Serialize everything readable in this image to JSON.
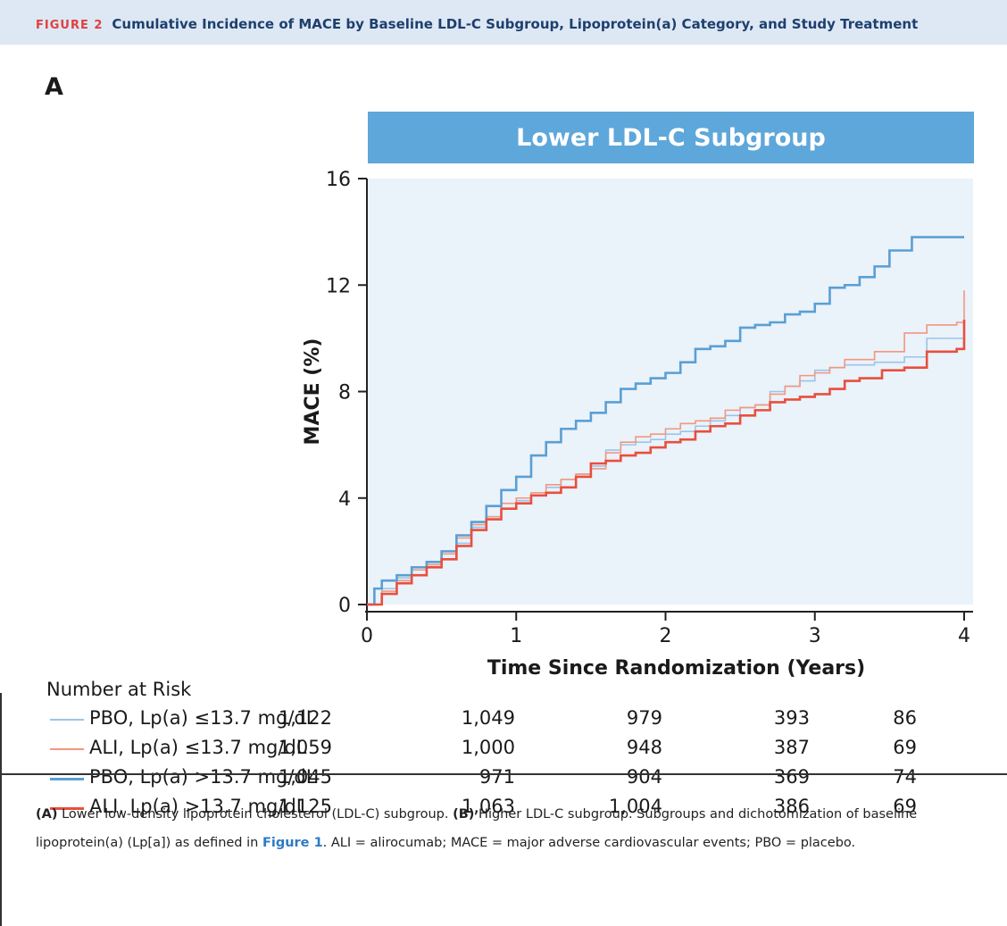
{
  "figure": {
    "number": "FIGURE 2",
    "title": "Cumulative Incidence of MACE by Baseline LDL-C Subgroup, Lipoprotein(a) Category, and Study Treatment"
  },
  "panel_letter": "A",
  "chart_data": {
    "type": "line",
    "title": "Lower LDL-C Subgroup",
    "xlabel": "Time Since Randomization (Years)",
    "ylabel": "MACE (%)",
    "xlim": [
      0,
      4
    ],
    "ylim": [
      0,
      16
    ],
    "xticks": [
      0,
      1,
      2,
      3,
      4
    ],
    "yticks": [
      0,
      4,
      8,
      12,
      16
    ],
    "background": "#eaf2fa",
    "series": [
      {
        "name": "PBO, Lp(a) ≤13.7 mg/dL",
        "color": "#9cc4e8",
        "step": true,
        "points": [
          [
            0,
            0
          ],
          [
            0.1,
            0.6
          ],
          [
            0.2,
            1.0
          ],
          [
            0.3,
            1.3
          ],
          [
            0.4,
            1.5
          ],
          [
            0.5,
            1.7
          ],
          [
            0.6,
            2.3
          ],
          [
            0.7,
            2.9
          ],
          [
            0.8,
            3.3
          ],
          [
            0.9,
            3.6
          ],
          [
            1.0,
            3.9
          ],
          [
            1.1,
            4.1
          ],
          [
            1.2,
            4.4
          ],
          [
            1.3,
            4.7
          ],
          [
            1.4,
            4.9
          ],
          [
            1.5,
            5.2
          ],
          [
            1.6,
            5.8
          ],
          [
            1.7,
            6.0
          ],
          [
            1.8,
            6.1
          ],
          [
            1.9,
            6.2
          ],
          [
            2.0,
            6.4
          ],
          [
            2.1,
            6.5
          ],
          [
            2.2,
            6.7
          ],
          [
            2.3,
            6.9
          ],
          [
            2.4,
            7.1
          ],
          [
            2.5,
            7.4
          ],
          [
            2.6,
            7.5
          ],
          [
            2.7,
            8.0
          ],
          [
            2.8,
            8.2
          ],
          [
            2.9,
            8.4
          ],
          [
            3.0,
            8.8
          ],
          [
            3.1,
            8.9
          ],
          [
            3.2,
            9.0
          ],
          [
            3.4,
            9.1
          ],
          [
            3.6,
            9.3
          ],
          [
            3.75,
            10.0
          ],
          [
            3.9,
            10.0
          ],
          [
            4.0,
            10.0
          ]
        ]
      },
      {
        "name": "ALI, Lp(a) ≤13.7 mg/dL",
        "color": "#f2977f",
        "step": true,
        "points": [
          [
            0,
            0
          ],
          [
            0.1,
            0.5
          ],
          [
            0.2,
            0.9
          ],
          [
            0.3,
            1.3
          ],
          [
            0.4,
            1.5
          ],
          [
            0.5,
            1.9
          ],
          [
            0.6,
            2.5
          ],
          [
            0.7,
            3.0
          ],
          [
            0.8,
            3.3
          ],
          [
            0.9,
            3.8
          ],
          [
            1.0,
            4.0
          ],
          [
            1.1,
            4.2
          ],
          [
            1.2,
            4.5
          ],
          [
            1.3,
            4.7
          ],
          [
            1.4,
            4.9
          ],
          [
            1.5,
            5.1
          ],
          [
            1.6,
            5.7
          ],
          [
            1.7,
            6.1
          ],
          [
            1.8,
            6.3
          ],
          [
            1.9,
            6.4
          ],
          [
            2.0,
            6.6
          ],
          [
            2.1,
            6.8
          ],
          [
            2.2,
            6.9
          ],
          [
            2.3,
            7.0
          ],
          [
            2.4,
            7.3
          ],
          [
            2.5,
            7.4
          ],
          [
            2.6,
            7.5
          ],
          [
            2.7,
            7.9
          ],
          [
            2.8,
            8.2
          ],
          [
            2.9,
            8.6
          ],
          [
            3.0,
            8.7
          ],
          [
            3.1,
            8.9
          ],
          [
            3.2,
            9.2
          ],
          [
            3.4,
            9.5
          ],
          [
            3.6,
            10.2
          ],
          [
            3.75,
            10.5
          ],
          [
            3.95,
            10.6
          ],
          [
            4.0,
            11.8
          ]
        ]
      },
      {
        "name": "PBO, Lp(a) >13.7 mg/dL",
        "color": "#5a9fd4",
        "step": true,
        "points": [
          [
            0,
            0
          ],
          [
            0.05,
            0.6
          ],
          [
            0.1,
            0.9
          ],
          [
            0.2,
            1.1
          ],
          [
            0.3,
            1.4
          ],
          [
            0.4,
            1.6
          ],
          [
            0.5,
            2.0
          ],
          [
            0.6,
            2.6
          ],
          [
            0.7,
            3.1
          ],
          [
            0.8,
            3.7
          ],
          [
            0.9,
            4.3
          ],
          [
            1.0,
            4.8
          ],
          [
            1.1,
            5.6
          ],
          [
            1.2,
            6.1
          ],
          [
            1.3,
            6.6
          ],
          [
            1.4,
            6.9
          ],
          [
            1.5,
            7.2
          ],
          [
            1.6,
            7.6
          ],
          [
            1.7,
            8.1
          ],
          [
            1.8,
            8.3
          ],
          [
            1.9,
            8.5
          ],
          [
            2.0,
            8.7
          ],
          [
            2.1,
            9.1
          ],
          [
            2.2,
            9.6
          ],
          [
            2.3,
            9.7
          ],
          [
            2.4,
            9.9
          ],
          [
            2.5,
            10.4
          ],
          [
            2.6,
            10.5
          ],
          [
            2.7,
            10.6
          ],
          [
            2.8,
            10.9
          ],
          [
            2.9,
            11.0
          ],
          [
            3.0,
            11.3
          ],
          [
            3.1,
            11.9
          ],
          [
            3.2,
            12.0
          ],
          [
            3.3,
            12.3
          ],
          [
            3.4,
            12.7
          ],
          [
            3.5,
            13.3
          ],
          [
            3.65,
            13.8
          ],
          [
            4.0,
            13.8
          ]
        ]
      },
      {
        "name": "ALI, Lp(a) >13.7 mg/dL",
        "color": "#e84f3d",
        "step": true,
        "points": [
          [
            0,
            0
          ],
          [
            0.1,
            0.4
          ],
          [
            0.2,
            0.8
          ],
          [
            0.3,
            1.1
          ],
          [
            0.4,
            1.4
          ],
          [
            0.5,
            1.7
          ],
          [
            0.6,
            2.2
          ],
          [
            0.7,
            2.8
          ],
          [
            0.8,
            3.2
          ],
          [
            0.9,
            3.6
          ],
          [
            1.0,
            3.8
          ],
          [
            1.1,
            4.1
          ],
          [
            1.2,
            4.2
          ],
          [
            1.3,
            4.4
          ],
          [
            1.4,
            4.8
          ],
          [
            1.5,
            5.3
          ],
          [
            1.6,
            5.4
          ],
          [
            1.7,
            5.6
          ],
          [
            1.8,
            5.7
          ],
          [
            1.9,
            5.9
          ],
          [
            2.0,
            6.1
          ],
          [
            2.1,
            6.2
          ],
          [
            2.2,
            6.5
          ],
          [
            2.3,
            6.7
          ],
          [
            2.4,
            6.8
          ],
          [
            2.5,
            7.1
          ],
          [
            2.6,
            7.3
          ],
          [
            2.7,
            7.6
          ],
          [
            2.8,
            7.7
          ],
          [
            2.9,
            7.8
          ],
          [
            3.0,
            7.9
          ],
          [
            3.1,
            8.1
          ],
          [
            3.2,
            8.4
          ],
          [
            3.3,
            8.5
          ],
          [
            3.45,
            8.8
          ],
          [
            3.6,
            8.9
          ],
          [
            3.75,
            9.5
          ],
          [
            3.95,
            9.6
          ],
          [
            4.0,
            10.7
          ]
        ]
      }
    ]
  },
  "risk_table": {
    "title": "Number at Risk",
    "rows": [
      {
        "label": "PBO, Lp(a) ≤13.7 mg/dL",
        "color": "#9cc4e8",
        "values": [
          "1,122",
          "1,049",
          "979",
          "393",
          "86"
        ]
      },
      {
        "label": "ALI, Lp(a) ≤13.7 mg/dL",
        "color": "#f2977f",
        "values": [
          "1,059",
          "1,000",
          "948",
          "387",
          "69"
        ]
      },
      {
        "label": "PBO, Lp(a) >13.7 mg/dL",
        "color": "#5a9fd4",
        "values": [
          "1,045",
          "971",
          "904",
          "369",
          "74"
        ]
      },
      {
        "label": "ALI, Lp(a) >13.7 mg/dL",
        "color": "#e84f3d",
        "values": [
          "1,125",
          "1,063",
          "1,004",
          "386",
          "69"
        ]
      }
    ]
  },
  "caption": {
    "a_label": "(A)",
    "a_text": " Lower low-density lipoprotein cholesterol (LDL-C) subgroup. ",
    "b_label": "(B)",
    "b_text": " Higher LDL-C subgroup. Subgroups and dichotomization of baseline lipoprotein(a) (Lp[a]) as defined in ",
    "link": "Figure 1",
    "rest": ". ALI = alirocumab; MACE = major adverse cardiovascular events; PBO = placebo."
  }
}
